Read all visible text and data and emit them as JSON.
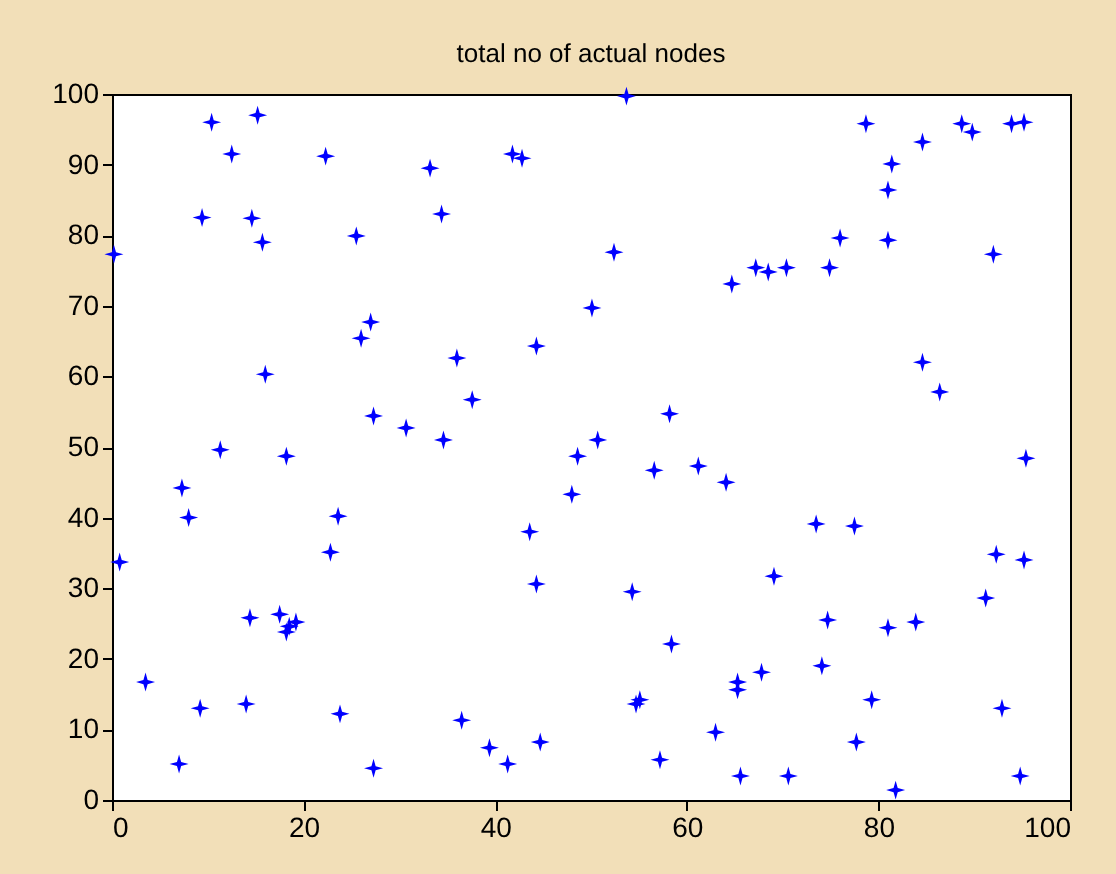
{
  "chart_data": {
    "type": "scatter",
    "title": "total no of actual nodes",
    "x": [
      0.2,
      0.8,
      3.5,
      7,
      7.3,
      8,
      9.2,
      9.4,
      10.4,
      11.3,
      12.5,
      14,
      14.4,
      14.6,
      15.2,
      15.7,
      16,
      17.5,
      18.2,
      18.2,
      18.5,
      19.2,
      22.3,
      22.8,
      23.6,
      23.8,
      25.5,
      26,
      27,
      27.3,
      27.3,
      30.7,
      33.2,
      34.4,
      34.6,
      36,
      36.5,
      37.6,
      39.4,
      41.3,
      41.8,
      42.8,
      43.6,
      44.3,
      44.3,
      44.7,
      48,
      48.6,
      50.1,
      50.7,
      52.4,
      53.7,
      54.3,
      54.7,
      55.1,
      56.6,
      57.2,
      58.2,
      58.4,
      61.2,
      63,
      64.1,
      64.7,
      65.3,
      65.3,
      65.6,
      67.2,
      67.8,
      68.5,
      69.1,
      70.4,
      70.6,
      73.5,
      74.1,
      74.7,
      74.9,
      76,
      77.5,
      77.7,
      78.7,
      79.3,
      81,
      81,
      81,
      81.4,
      81.8,
      83.9,
      84.6,
      84.6,
      86.4,
      88.7,
      89.8,
      91.2,
      92,
      92.3,
      92.9,
      93.9,
      94.8,
      95.2,
      95.2,
      95.4
    ],
    "series": [
      {
        "color": "#0000ff",
        "values": [
          77.3,
          33.7,
          16.7,
          5.1,
          44.2,
          40,
          13,
          82.5,
          96,
          49.6,
          91.5,
          13.6,
          25.8,
          82.4,
          97,
          79,
          60.3,
          26.3,
          48.7,
          23.8,
          24.6,
          25.2,
          91.2,
          35.1,
          40.2,
          12.2,
          79.9,
          65.4,
          67.7,
          54.4,
          4.5,
          52.7,
          89.5,
          83,
          51,
          62.6,
          11.3,
          56.7,
          7.4,
          5.1,
          91.5,
          90.9,
          38,
          64.3,
          30.6,
          8.2,
          43.3,
          48.7,
          69.7,
          51,
          77.6,
          99.7,
          29.5,
          13.6,
          14.2,
          46.7,
          5.7,
          54.7,
          22.1,
          47.3,
          9.6,
          45,
          73.1,
          16.7,
          15.6,
          3.4,
          75.4,
          18.1,
          74.8,
          31.7,
          75.4,
          3.4,
          39.1,
          19,
          25.5,
          75.4,
          79.6,
          38.8,
          8.2,
          95.8,
          14.2,
          79.3,
          24.4,
          86.4,
          90.1,
          1.4,
          25.2,
          93.2,
          62,
          57.8,
          95.8,
          94.6,
          28.6,
          77.3,
          34.8,
          13,
          95.8,
          3.4,
          96,
          34,
          48.4
        ]
      }
    ],
    "xlim": [
      0,
      100
    ],
    "ylim": [
      0,
      100
    ],
    "xticks": [
      0,
      20,
      40,
      60,
      80,
      100
    ],
    "yticks": [
      0,
      10,
      20,
      30,
      40,
      50,
      60,
      70,
      80,
      90,
      100
    ],
    "marker": "star",
    "grid": false,
    "legend": false
  }
}
